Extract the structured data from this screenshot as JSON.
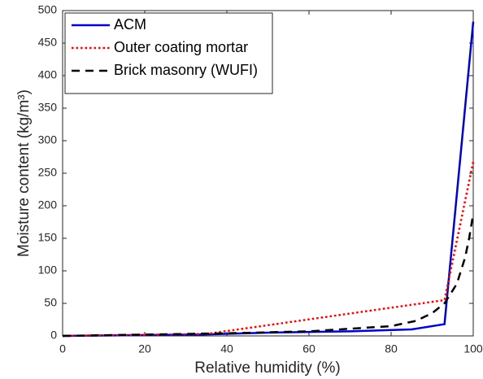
{
  "chart_data": {
    "type": "line",
    "xlabel": "Relative humidity (%)",
    "ylabel": "Moisture content (kg/m³)",
    "xlim": [
      0,
      100
    ],
    "xticks": [
      0,
      20,
      40,
      60,
      80,
      100
    ],
    "ylim": [
      0,
      500
    ],
    "yticks": [
      0,
      50,
      100,
      150,
      200,
      250,
      300,
      350,
      400,
      450,
      500
    ],
    "legend": "upper-left",
    "series": [
      {
        "name": "ACM",
        "color": "#0000c8",
        "dash": "solid",
        "x": [
          0,
          33,
          50,
          70,
          85,
          93,
          100
        ],
        "values": [
          0,
          2,
          5,
          7,
          10,
          18,
          483
        ]
      },
      {
        "name": "Outer coating mortar",
        "color": "#ff0000",
        "dash": "dotted",
        "x": [
          0,
          35,
          93,
          100
        ],
        "values": [
          0,
          3,
          55,
          268
        ]
      },
      {
        "name": "Brick masonry (WUFI)",
        "color": "#000000",
        "dash": "dashed",
        "x": [
          0,
          40,
          60,
          80,
          86,
          90,
          93,
          96,
          98,
          99,
          100
        ],
        "values": [
          0,
          4,
          7,
          15,
          23,
          35,
          50,
          80,
          120,
          150,
          188
        ]
      }
    ]
  }
}
